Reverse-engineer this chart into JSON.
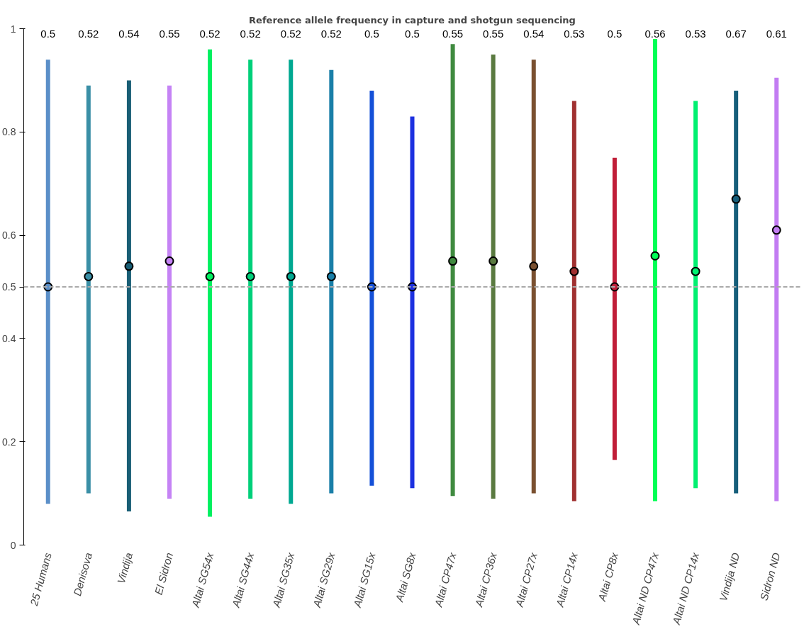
{
  "chart_data": {
    "type": "scatter",
    "title": "Reference allele frequency in capture and shotgun sequencing",
    "categories": [
      "25 Humans",
      "Denisova",
      "Vindija",
      "El Sidron",
      "Altai SG54x",
      "Altai SG44x",
      "Altai SG35x",
      "Altai SG29x",
      "Altai SG15x",
      "Altai SG8x",
      "Altai CP47x",
      "Altai CP36x",
      "Altai CP27x",
      "Altai CP14x",
      "Altai CP8x",
      "Altai ND CP47x",
      "Altai ND CP14x",
      "Vindija ND",
      "Sidron ND"
    ],
    "values": [
      0.5,
      0.52,
      0.54,
      0.55,
      0.52,
      0.52,
      0.52,
      0.52,
      0.5,
      0.5,
      0.55,
      0.55,
      0.54,
      0.53,
      0.5,
      0.56,
      0.53,
      0.67,
      0.61
    ],
    "annotations": [
      "0.5",
      "0.52",
      "0.54",
      "0.55",
      "0.52",
      "0.52",
      "0.52",
      "0.52",
      "0.5",
      "0.5",
      "0.55",
      "0.55",
      "0.54",
      "0.53",
      "0.5",
      "0.56",
      "0.53",
      "0.67",
      "0.61"
    ],
    "errors": [
      [
        0.08,
        0.94
      ],
      [
        0.1,
        0.89
      ],
      [
        0.065,
        0.9
      ],
      [
        0.09,
        0.89
      ],
      [
        0.055,
        0.96
      ],
      [
        0.09,
        0.94
      ],
      [
        0.08,
        0.94
      ],
      [
        0.1,
        0.92
      ],
      [
        0.115,
        0.88
      ],
      [
        0.11,
        0.83
      ],
      [
        0.095,
        0.97
      ],
      [
        0.09,
        0.95
      ],
      [
        0.1,
        0.94
      ],
      [
        0.085,
        0.86
      ],
      [
        0.165,
        0.75
      ],
      [
        0.085,
        0.98
      ],
      [
        0.11,
        0.86
      ],
      [
        0.1,
        0.88
      ],
      [
        0.085,
        0.905
      ]
    ],
    "colors": [
      "#5b8fc8",
      "#3a8fa6",
      "#195e75",
      "#c583f5",
      "#00f060",
      "#00d07a",
      "#00a891",
      "#1a7fa8",
      "#1450d8",
      "#1c30e0",
      "#3f8a3f",
      "#5a7a40",
      "#7a5030",
      "#a03030",
      "#c01e38",
      "#00ff55",
      "#00f070",
      "#165e7a",
      "#c27cf2"
    ],
    "marker": "circle",
    "ylim": [
      0,
      1
    ],
    "yticks": [
      0,
      0.2,
      0.4,
      0.5,
      0.6,
      0.8,
      1
    ],
    "ref_lines": [
      {
        "axis": "y",
        "value": 0.5,
        "color": "#aaaaaa",
        "line_style": "dashed"
      }
    ]
  }
}
